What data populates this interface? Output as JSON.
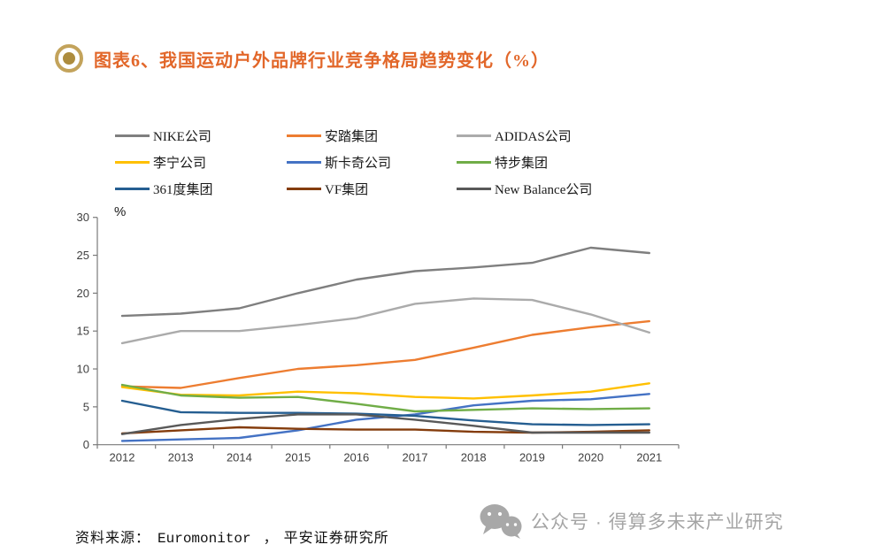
{
  "header": {
    "title": "图表6、我国运动户外品牌行业竞争格局趋势变化（%）",
    "title_color": "#e2672a"
  },
  "chart_data": {
    "type": "line",
    "x": [
      "2012",
      "2013",
      "2014",
      "2015",
      "2016",
      "2017",
      "2018",
      "2019",
      "2020",
      "2021"
    ],
    "series": [
      {
        "name": "NIKE公司",
        "color": "#7f7f7f",
        "values": [
          17.0,
          17.3,
          18.0,
          20.0,
          21.8,
          22.9,
          23.4,
          24.0,
          26.0,
          25.3
        ]
      },
      {
        "name": "安踏集团",
        "color": "#ed7d31",
        "values": [
          7.7,
          7.5,
          8.8,
          10.0,
          10.5,
          11.2,
          12.8,
          14.5,
          15.5,
          16.3
        ]
      },
      {
        "name": "ADIDAS公司",
        "color": "#ababab",
        "values": [
          13.4,
          15.0,
          15.0,
          15.8,
          16.7,
          18.6,
          19.3,
          19.1,
          17.2,
          14.8
        ]
      },
      {
        "name": "李宁公司",
        "color": "#ffc000",
        "values": [
          7.6,
          6.6,
          6.5,
          7.0,
          6.8,
          6.3,
          6.1,
          6.5,
          7.0,
          8.1
        ]
      },
      {
        "name": "斯卡奇公司",
        "color": "#4472c4",
        "values": [
          0.5,
          0.7,
          0.9,
          1.9,
          3.3,
          4.0,
          5.2,
          5.8,
          6.0,
          6.7
        ]
      },
      {
        "name": "特步集团",
        "color": "#70ad47",
        "values": [
          7.9,
          6.5,
          6.2,
          6.3,
          5.4,
          4.4,
          4.6,
          4.8,
          4.7,
          4.8
        ]
      },
      {
        "name": "361度集团",
        "color": "#255e91",
        "values": [
          5.8,
          4.3,
          4.2,
          4.2,
          4.1,
          3.8,
          3.2,
          2.7,
          2.6,
          2.7
        ]
      },
      {
        "name": "VF集团",
        "color": "#843c0c",
        "values": [
          1.5,
          1.9,
          2.3,
          2.1,
          2.0,
          2.0,
          1.7,
          1.6,
          1.7,
          1.9
        ]
      },
      {
        "name": "New Balance公司",
        "color": "#595959",
        "values": [
          1.4,
          2.6,
          3.4,
          4.0,
          4.0,
          3.3,
          2.5,
          1.6,
          1.6,
          1.6
        ]
      }
    ],
    "title": "我国运动户外品牌行业竞争格局趋势变化（%）",
    "xlabel": "",
    "ylabel": "%",
    "ylim": [
      0,
      30
    ],
    "yticks": [
      0,
      5,
      10,
      15,
      20,
      25,
      30
    ],
    "grid": false,
    "legend_position": "top"
  },
  "footer": {
    "prefix": "资料来源：",
    "source": "Euromonitor",
    "separator": "，",
    "publisher": "平安证券研究所"
  },
  "watermark": {
    "text": "公众号 · 得算多未来产业研究"
  }
}
